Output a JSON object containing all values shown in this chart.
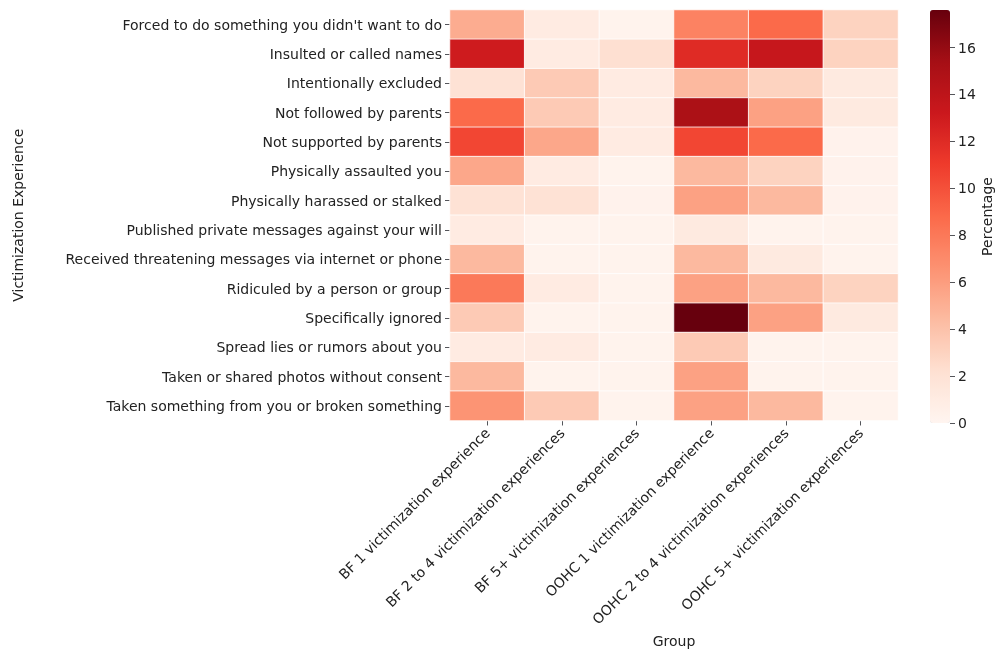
{
  "chart_data": {
    "type": "heatmap",
    "xlabel": "Group",
    "ylabel": "Victimization Experience",
    "clabel": "Percentage",
    "categories": [
      "BF 1 victimization experience",
      "BF 2 to 4 victimization experiences",
      "BF 5+ victimization experiences",
      "OOHC 1 victimization experience",
      "OOHC 2 to 4 victimization experiences",
      "OOHC 5+ victimization experiences"
    ],
    "y_categories": [
      "Forced to do something you didn't want to do",
      "Insulted or called names",
      "Intentionally excluded",
      "Not followed by parents",
      "Not supported by parents",
      "Physically assaulted you",
      "Physically harassed or stalked",
      "Published private messages against your will",
      "Received threatening messages via internet or phone",
      "Ridiculed by a person or group",
      "Specifically ignored",
      "Spread lies or rumors about you",
      "Taken or shared photos without consent",
      "Taken something from you or broken something"
    ],
    "cells": [
      [
        5.2,
        1.0,
        0.2,
        7.5,
        8.8,
        3.0
      ],
      [
        13,
        1.0,
        2.2,
        12,
        13.5,
        3.0
      ],
      [
        2.0,
        3.5,
        1.0,
        4.5,
        3.0,
        1.2
      ],
      [
        8.8,
        3.5,
        1.0,
        15,
        5.8,
        1.2
      ],
      [
        10.5,
        5.5,
        1.0,
        10.5,
        8.8,
        0.3
      ],
      [
        5.5,
        1.0,
        0.2,
        4.5,
        3.0,
        0.3
      ],
      [
        2.0,
        2.0,
        0.3,
        5.8,
        4.5,
        0.3
      ],
      [
        1.0,
        0.2,
        0.2,
        1.2,
        0.2,
        0.2
      ],
      [
        4.5,
        0.2,
        0.2,
        4.5,
        1.2,
        0.2
      ],
      [
        8,
        1.0,
        0.2,
        5.8,
        4.5,
        3.0
      ],
      [
        3.5,
        0.2,
        0.2,
        17.6,
        5.8,
        1.2
      ],
      [
        1.0,
        1.0,
        0.2,
        3.5,
        0.2,
        0.2
      ],
      [
        4.5,
        0.2,
        0.2,
        5.8,
        0.2,
        0.2
      ],
      [
        6.5,
        3.5,
        0.2,
        5.8,
        4.5,
        0.2
      ]
    ],
    "clim": [
      0,
      17.6
    ],
    "cticks": [
      0,
      2,
      4,
      6,
      8,
      10,
      12,
      14,
      16
    ]
  }
}
